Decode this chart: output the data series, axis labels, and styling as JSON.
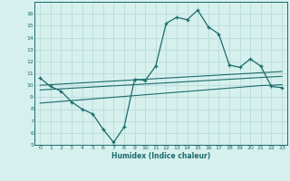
{
  "xlabel": "Humidex (Indice chaleur)",
  "background_color": "#d6f0ee",
  "grid_color": "#b8dcd8",
  "line_color": "#1a6b6b",
  "x_values": [
    0,
    1,
    2,
    3,
    4,
    5,
    6,
    7,
    8,
    9,
    10,
    11,
    12,
    13,
    14,
    15,
    16,
    17,
    18,
    19,
    20,
    21,
    22,
    23
  ],
  "line1_y": [
    10.6,
    9.9,
    9.5,
    8.6,
    8.0,
    7.6,
    6.3,
    5.2,
    6.5,
    10.5,
    10.4,
    11.6,
    15.2,
    15.7,
    15.5,
    16.3,
    14.9,
    14.3,
    11.7,
    11.5,
    12.2,
    11.6,
    9.9,
    9.8
  ],
  "line2_y": [
    9.6,
    9.65,
    9.7,
    9.75,
    9.8,
    9.85,
    9.9,
    9.95,
    10.0,
    10.05,
    10.1,
    10.15,
    10.2,
    10.25,
    10.3,
    10.35,
    10.4,
    10.45,
    10.5,
    10.55,
    10.6,
    10.65,
    10.7,
    10.75
  ],
  "line3_y": [
    10.0,
    10.05,
    10.1,
    10.15,
    10.2,
    10.25,
    10.3,
    10.35,
    10.4,
    10.45,
    10.5,
    10.55,
    10.6,
    10.65,
    10.7,
    10.75,
    10.8,
    10.85,
    10.9,
    10.95,
    11.0,
    11.05,
    11.1,
    11.15
  ],
  "line4_y": [
    8.5,
    8.57,
    8.64,
    8.71,
    8.78,
    8.85,
    8.92,
    8.99,
    9.06,
    9.13,
    9.2,
    9.27,
    9.34,
    9.41,
    9.48,
    9.55,
    9.62,
    9.69,
    9.76,
    9.83,
    9.9,
    9.97,
    10.0,
    10.05
  ],
  "ylim": [
    5,
    17
  ],
  "yticks": [
    5,
    6,
    7,
    8,
    9,
    10,
    11,
    12,
    13,
    14,
    15,
    16
  ],
  "xlim": [
    -0.5,
    23.5
  ],
  "xticks": [
    0,
    1,
    2,
    3,
    4,
    5,
    6,
    7,
    8,
    9,
    10,
    11,
    12,
    13,
    14,
    15,
    16,
    17,
    18,
    19,
    20,
    21,
    22,
    23
  ]
}
